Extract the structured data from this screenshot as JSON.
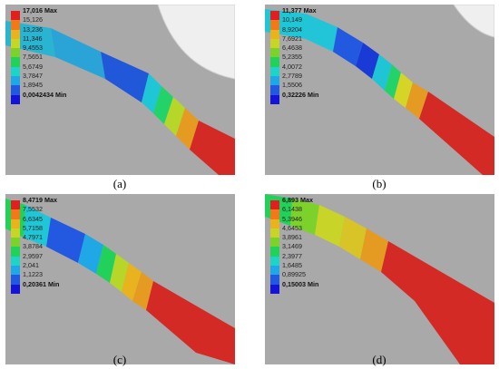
{
  "legend_colors": [
    "#e02020",
    "#f07a1a",
    "#e9b320",
    "#c9d428",
    "#7cd22a",
    "#22d15a",
    "#1fd3c8",
    "#20a8e6",
    "#2358e0",
    "#1414d6"
  ],
  "panels": [
    {
      "id": "a",
      "caption": "(a)",
      "labels": [
        "17,016 Max",
        "15,126",
        "13,236",
        "11,346",
        "9,4553",
        "7,5651",
        "5,6749",
        "3,7847",
        "1,8945",
        "0,0042434 Min"
      ]
    },
    {
      "id": "b",
      "caption": "(b)",
      "labels": [
        "11,377 Max",
        "10,149",
        "8,9204",
        "7,6921",
        "6,4638",
        "5,2355",
        "4,0072",
        "2,7789",
        "1,5506",
        "0,32226 Min"
      ]
    },
    {
      "id": "c",
      "caption": "(c)",
      "labels": [
        "8,4719 Max",
        "7,5532",
        "6,6345",
        "5,7158",
        "4,7971",
        "3,8784",
        "2,9597",
        "2,041",
        "1,1223",
        "0,20361 Min"
      ]
    },
    {
      "id": "d",
      "caption": "(d)",
      "labels": [
        "6,893 Max",
        "6,1438",
        "5,3946",
        "4,6453",
        "3,8961",
        "3,1469",
        "2,3977",
        "1,6485",
        "0,89925",
        "0,15003 Min"
      ]
    }
  ]
}
